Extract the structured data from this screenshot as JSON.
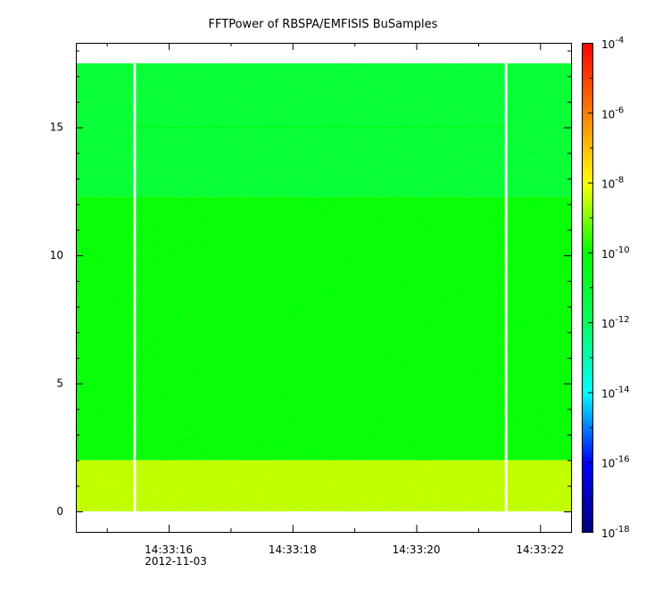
{
  "chart_data": {
    "type": "heatmap",
    "title": "FFTPower of RBSPA/EMFISIS  BuSamples",
    "xlabel": "",
    "ylabel": "",
    "x_ticks": [
      "14:33:16",
      "14:33:18",
      "14:33:20",
      "14:33:22"
    ],
    "x_ticks_seconds": [
      16,
      18,
      20,
      22
    ],
    "x_date_label": "2012-11-03",
    "xlim_seconds": [
      14.5,
      22.5
    ],
    "y_ticks": [
      "0",
      "5",
      "10",
      "15"
    ],
    "y_tick_values": [
      0,
      5,
      10,
      15
    ],
    "ylim": [
      -0.8,
      18.3
    ],
    "data_y_range": [
      0,
      17.5
    ],
    "gap_lines_seconds": [
      15.45,
      21.45
    ],
    "colorbar": {
      "scale": "log",
      "range": [
        1e-18,
        0.0001
      ],
      "tick_exponents": [
        "-4",
        "-6",
        "-8",
        "-10",
        "-12",
        "-14",
        "-16",
        "-18"
      ],
      "tick_values": [
        -4,
        -6,
        -8,
        -10,
        -12,
        -14,
        -16,
        -18
      ],
      "colormap": [
        "#00007f",
        "#0000ff",
        "#00ffff",
        "#00ff60",
        "#00ff00",
        "#ffff00",
        "#ff7f00",
        "#ff0000"
      ]
    },
    "bands": [
      {
        "y_from": 0,
        "y_to": 2,
        "log_power": -8.5
      },
      {
        "y_from": 2,
        "y_to": 12.3,
        "log_power": -10.2
      },
      {
        "y_from": 12.3,
        "y_to": 17.5,
        "log_power": -11.2
      }
    ],
    "line_feature": {
      "y": 15,
      "log_power": -10.3
    }
  }
}
